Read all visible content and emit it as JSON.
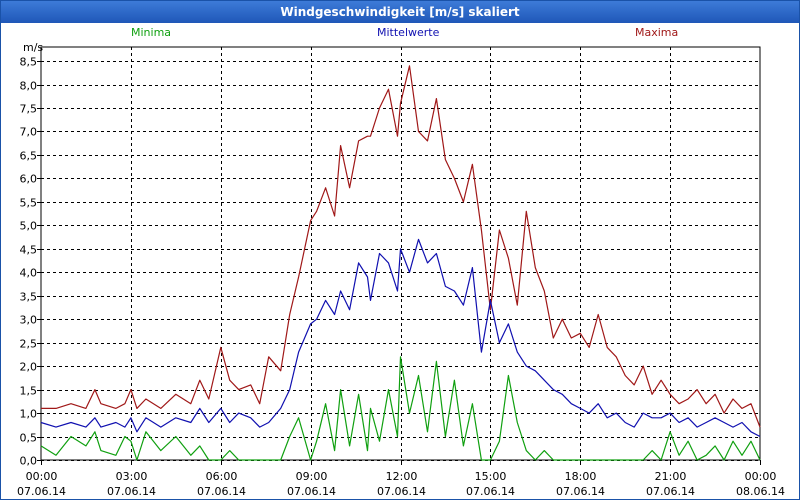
{
  "window": {
    "title": "Windgeschwindigkeit [m/s] skaliert"
  },
  "chart_data": {
    "type": "line",
    "title": "Windgeschwindigkeit [m/s] skaliert",
    "ylabel": "m/s",
    "ylim": [
      0,
      8.8
    ],
    "xlim": [
      0,
      24
    ],
    "y_ticks": [
      "0,0",
      "0,5",
      "1,0",
      "1,5",
      "2,0",
      "2,5",
      "3,0",
      "3,5",
      "4,0",
      "4,5",
      "5,0",
      "5,5",
      "6,0",
      "6,5",
      "7,0",
      "7,5",
      "8,0",
      "8,5"
    ],
    "x_ticks": [
      {
        "time": "00:00",
        "date": "07.06.14"
      },
      {
        "time": "03:00",
        "date": "07.06.14"
      },
      {
        "time": "06:00",
        "date": "07.06.14"
      },
      {
        "time": "09:00",
        "date": "07.06.14"
      },
      {
        "time": "12:00",
        "date": "07.06.14"
      },
      {
        "time": "15:00",
        "date": "07.06.14"
      },
      {
        "time": "18:00",
        "date": "07.06.14"
      },
      {
        "time": "21:00",
        "date": "07.06.14"
      },
      {
        "time": "00:00",
        "date": "08.06.14"
      }
    ],
    "grid": true,
    "legend": [
      "Minima",
      "Mittelwerte",
      "Maxima"
    ],
    "series": [
      {
        "name": "Maxima",
        "color": "#a01818",
        "x": [
          0,
          0.5,
          1,
          1.5,
          1.8,
          2,
          2.5,
          2.8,
          3,
          3.2,
          3.5,
          4,
          4.5,
          5,
          5.3,
          5.6,
          6,
          6.3,
          6.6,
          7,
          7.3,
          7.6,
          8,
          8.3,
          8.6,
          9,
          9.2,
          9.5,
          9.8,
          10,
          10.3,
          10.6,
          10.9,
          11,
          11.3,
          11.6,
          11.9,
          12,
          12.3,
          12.6,
          12.9,
          13.2,
          13.5,
          13.8,
          14.1,
          14.4,
          14.7,
          15,
          15.3,
          15.6,
          15.9,
          16.2,
          16.5,
          16.8,
          17.1,
          17.4,
          17.7,
          18,
          18.3,
          18.6,
          18.9,
          19.2,
          19.5,
          19.8,
          20.1,
          20.4,
          20.7,
          21,
          21.3,
          21.6,
          21.9,
          22.2,
          22.5,
          22.8,
          23.1,
          23.4,
          23.7,
          24
        ],
        "y": [
          1.1,
          1.1,
          1.2,
          1.1,
          1.5,
          1.2,
          1.1,
          1.2,
          1.5,
          1.1,
          1.3,
          1.1,
          1.4,
          1.2,
          1.7,
          1.3,
          2.4,
          1.7,
          1.5,
          1.6,
          1.2,
          2.2,
          1.9,
          3.1,
          3.9,
          5.1,
          5.3,
          5.8,
          5.2,
          6.7,
          5.8,
          6.8,
          6.9,
          6.9,
          7.5,
          7.9,
          6.9,
          7.6,
          8.4,
          7.0,
          6.8,
          7.7,
          6.4,
          6.0,
          5.5,
          6.3,
          4.9,
          3.2,
          4.9,
          4.3,
          3.3,
          5.3,
          4.1,
          3.6,
          2.6,
          3.0,
          2.6,
          2.7,
          2.4,
          3.1,
          2.4,
          2.2,
          1.8,
          1.6,
          2.0,
          1.4,
          1.7,
          1.4,
          1.2,
          1.3,
          1.5,
          1.2,
          1.4,
          1.0,
          1.3,
          1.1,
          1.2,
          0.7
        ]
      },
      {
        "name": "Mittelwerte",
        "color": "#1010b0",
        "x": [
          0,
          0.5,
          1,
          1.5,
          1.8,
          2,
          2.5,
          2.8,
          3,
          3.2,
          3.5,
          4,
          4.5,
          5,
          5.3,
          5.6,
          6,
          6.3,
          6.6,
          7,
          7.3,
          7.6,
          8,
          8.3,
          8.6,
          9,
          9.2,
          9.5,
          9.8,
          10,
          10.3,
          10.6,
          10.9,
          11,
          11.3,
          11.6,
          11.9,
          12,
          12.3,
          12.6,
          12.9,
          13.2,
          13.5,
          13.8,
          14.1,
          14.4,
          14.7,
          15,
          15.3,
          15.6,
          15.9,
          16.2,
          16.5,
          16.8,
          17.1,
          17.4,
          17.7,
          18,
          18.3,
          18.6,
          18.9,
          19.2,
          19.5,
          19.8,
          20.1,
          20.4,
          20.7,
          21,
          21.3,
          21.6,
          21.9,
          22.2,
          22.5,
          22.8,
          23.1,
          23.4,
          23.7,
          24
        ],
        "y": [
          0.8,
          0.7,
          0.8,
          0.7,
          0.9,
          0.7,
          0.8,
          0.7,
          0.9,
          0.6,
          0.9,
          0.7,
          0.9,
          0.8,
          1.1,
          0.8,
          1.1,
          0.8,
          1.0,
          0.9,
          0.7,
          0.8,
          1.1,
          1.5,
          2.3,
          2.9,
          3.0,
          3.4,
          3.1,
          3.6,
          3.2,
          4.2,
          3.9,
          3.4,
          4.4,
          4.2,
          3.6,
          4.5,
          4.0,
          4.7,
          4.2,
          4.4,
          3.7,
          3.6,
          3.3,
          4.1,
          2.3,
          3.4,
          2.5,
          2.9,
          2.3,
          2.0,
          1.9,
          1.7,
          1.5,
          1.4,
          1.2,
          1.1,
          1.0,
          1.2,
          0.9,
          1.0,
          0.8,
          0.7,
          1.0,
          0.9,
          0.9,
          1.0,
          0.8,
          0.9,
          0.7,
          0.8,
          0.9,
          0.8,
          0.7,
          0.8,
          0.6,
          0.5
        ]
      },
      {
        "name": "Minima",
        "color": "#10a010",
        "x": [
          0,
          0.5,
          1,
          1.5,
          1.8,
          2,
          2.5,
          2.8,
          3,
          3.2,
          3.5,
          4,
          4.5,
          5,
          5.3,
          5.6,
          6,
          6.3,
          6.6,
          7,
          7.3,
          7.6,
          8,
          8.3,
          8.6,
          9,
          9.2,
          9.5,
          9.8,
          10,
          10.3,
          10.6,
          10.9,
          11,
          11.3,
          11.6,
          11.9,
          12,
          12.3,
          12.6,
          12.9,
          13.2,
          13.5,
          13.8,
          14.1,
          14.4,
          14.7,
          15,
          15.3,
          15.6,
          15.9,
          16.2,
          16.5,
          16.8,
          17.1,
          17.4,
          17.7,
          18,
          18.3,
          18.6,
          18.9,
          19.2,
          19.5,
          19.8,
          20.1,
          20.4,
          20.7,
          21,
          21.3,
          21.6,
          21.9,
          22.2,
          22.5,
          22.8,
          23.1,
          23.4,
          23.7,
          24
        ],
        "y": [
          0.3,
          0.1,
          0.5,
          0.3,
          0.6,
          0.2,
          0.1,
          0.5,
          0.4,
          0.0,
          0.6,
          0.2,
          0.5,
          0.1,
          0.3,
          0.0,
          0.0,
          0.2,
          0.0,
          0.0,
          0.0,
          0.0,
          0.0,
          0.5,
          0.9,
          0.0,
          0.4,
          1.2,
          0.2,
          1.5,
          0.3,
          1.4,
          0.2,
          1.1,
          0.4,
          1.5,
          0.5,
          2.2,
          1.0,
          1.8,
          0.6,
          2.1,
          0.5,
          1.7,
          0.3,
          1.2,
          0.0,
          0.0,
          0.4,
          1.8,
          0.8,
          0.2,
          0.0,
          0.2,
          0.0,
          0.0,
          0.0,
          0.0,
          0.0,
          0.0,
          0.0,
          0.0,
          0.0,
          0.0,
          0.0,
          0.2,
          0.0,
          0.6,
          0.1,
          0.4,
          0.0,
          0.1,
          0.3,
          0.0,
          0.4,
          0.1,
          0.4,
          0.0
        ]
      }
    ]
  }
}
